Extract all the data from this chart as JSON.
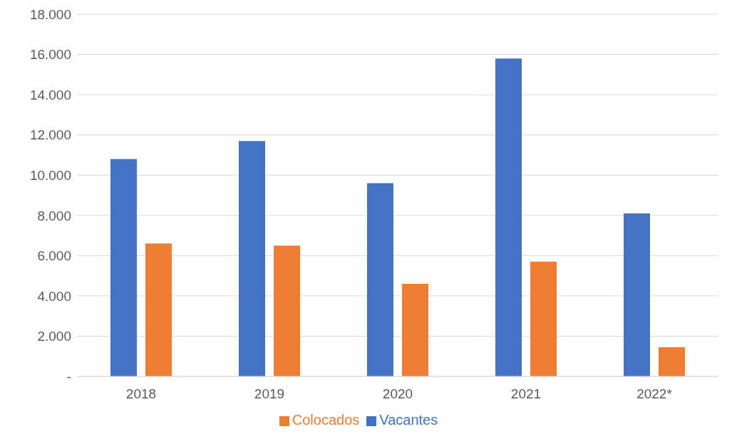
{
  "chart_data": {
    "type": "bar",
    "categories": [
      "2018",
      "2019",
      "2020",
      "2021",
      "2022*"
    ],
    "series": [
      {
        "name": "Vacantes",
        "color": "#4472c4",
        "values": [
          10800,
          11700,
          9600,
          15800,
          8100
        ]
      },
      {
        "name": "Colocados",
        "color": "#ed7d31",
        "values": [
          6600,
          6500,
          4600,
          5700,
          1450
        ]
      }
    ],
    "ylim": [
      0,
      18000
    ],
    "yticks": [
      {
        "value": 0,
        "label": "-"
      },
      {
        "value": 2000,
        "label": "2.000"
      },
      {
        "value": 4000,
        "label": "4.000"
      },
      {
        "value": 6000,
        "label": "6.000"
      },
      {
        "value": 8000,
        "label": "8.000"
      },
      {
        "value": 10000,
        "label": "10.000"
      },
      {
        "value": 12000,
        "label": "12.000"
      },
      {
        "value": 14000,
        "label": "14.000"
      },
      {
        "value": 16000,
        "label": "16.000"
      },
      {
        "value": 18000,
        "label": "18.000"
      }
    ],
    "grid": "y",
    "legend": "bottom"
  }
}
